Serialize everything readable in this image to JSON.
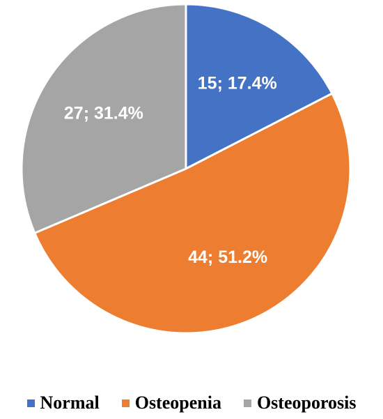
{
  "chart_data": {
    "type": "pie",
    "title": "",
    "start_angle_deg": 90,
    "direction": "clockwise",
    "legend_position": "bottom",
    "slices": [
      {
        "name": "Normal",
        "value": 15,
        "percent": 17.4,
        "label": "15; 17.4%",
        "color": "#4472C4"
      },
      {
        "name": "Osteopenia",
        "value": 44,
        "percent": 51.2,
        "label": "44; 51.2%",
        "color": "#ED7D31"
      },
      {
        "name": "Osteoporosis",
        "value": 27,
        "percent": 31.4,
        "label": "27; 31.4%",
        "color": "#A5A5A5"
      }
    ]
  }
}
